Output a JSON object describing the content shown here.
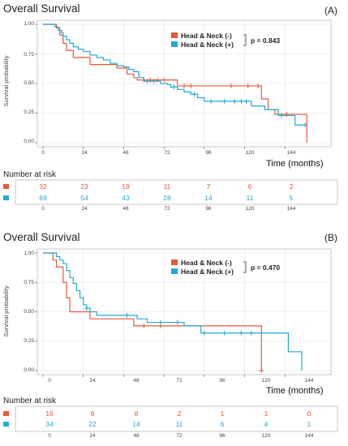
{
  "colors": {
    "neg": "#E8573A",
    "pos": "#22A9D6"
  },
  "charts": [
    {
      "title": "Overall Survival",
      "panel_label": "(A)",
      "legend": [
        "Head & Neck (-)",
        "Head & Neck (+)"
      ],
      "p_value": "p = 0.843",
      "ylabel": "Survival probability",
      "xlabel": "Time (months)",
      "risk_title": "Number at risk",
      "risk_neg": [
        "32",
        "23",
        "19",
        "11",
        "7",
        "6",
        "2"
      ],
      "risk_pos": [
        "69",
        "54",
        "43",
        "28",
        "14",
        "11",
        "5"
      ]
    },
    {
      "title": "Overall Survival",
      "panel_label": "(B)",
      "legend": [
        "Head & Neck (-)",
        "Head & Neck (+)"
      ],
      "p_value": "p = 0.470",
      "ylabel": "Survival probability",
      "xlabel": "Time (months)",
      "risk_title": "Number at risk",
      "risk_neg": [
        "16",
        "9",
        "8",
        "2",
        "1",
        "1",
        "0"
      ],
      "risk_pos": [
        "34",
        "22",
        "14",
        "11",
        "6",
        "4",
        "1"
      ]
    }
  ],
  "chart_data": [
    {
      "type": "line",
      "title": "Overall Survival",
      "xlabel": "Time (months)",
      "ylabel": "Survival probability",
      "xlim": [
        0,
        168
      ],
      "ylim": [
        0,
        1
      ],
      "x_ticks": [
        0,
        24,
        48,
        72,
        96,
        120,
        144
      ],
      "y_ticks": [
        "0.00",
        "0.25",
        "0.50",
        "0.75",
        "1.00"
      ],
      "legend_position": "top-right",
      "series": [
        {
          "name": "Head & Neck (-)",
          "steps": [
            [
              0,
              1.0
            ],
            [
              8,
              0.97
            ],
            [
              10,
              0.91
            ],
            [
              12,
              0.84
            ],
            [
              14,
              0.78
            ],
            [
              18,
              0.72
            ],
            [
              28,
              0.66
            ],
            [
              44,
              0.63
            ],
            [
              50,
              0.58
            ],
            [
              54,
              0.55
            ],
            [
              56,
              0.53
            ],
            [
              80,
              0.48
            ],
            [
              130,
              0.37
            ],
            [
              134,
              0.28
            ],
            [
              138,
              0.24
            ],
            [
              157,
              0.0
            ]
          ],
          "censor_x": [
            60,
            64,
            68,
            72,
            84,
            88,
            112,
            122,
            128,
            145
          ]
        },
        {
          "name": "Head & Neck (+)",
          "steps": [
            [
              0,
              1.0
            ],
            [
              7,
              0.98
            ],
            [
              9,
              0.95
            ],
            [
              11,
              0.93
            ],
            [
              12,
              0.9
            ],
            [
              14,
              0.87
            ],
            [
              16,
              0.84
            ],
            [
              18,
              0.81
            ],
            [
              21,
              0.79
            ],
            [
              24,
              0.77
            ],
            [
              28,
              0.74
            ],
            [
              32,
              0.72
            ],
            [
              36,
              0.7
            ],
            [
              40,
              0.67
            ],
            [
              44,
              0.65
            ],
            [
              48,
              0.64
            ],
            [
              51,
              0.62
            ],
            [
              54,
              0.6
            ],
            [
              57,
              0.55
            ],
            [
              60,
              0.52
            ],
            [
              70,
              0.5
            ],
            [
              74,
              0.49
            ],
            [
              76,
              0.47
            ],
            [
              80,
              0.45
            ],
            [
              84,
              0.43
            ],
            [
              88,
              0.41
            ],
            [
              92,
              0.38
            ],
            [
              96,
              0.35
            ],
            [
              124,
              0.31
            ],
            [
              132,
              0.28
            ],
            [
              140,
              0.23
            ],
            [
              150,
              0.15
            ]
          ],
          "censor_x": [
            62,
            66,
            78,
            90,
            100,
            108,
            114,
            118,
            121,
            142,
            156
          ]
        }
      ],
      "annotations": [
        "p = 0.843",
        "(A)"
      ]
    },
    {
      "type": "line",
      "title": "Overall Survival",
      "xlabel": "Time (months)",
      "ylabel": "Survival probability",
      "xlim": [
        0,
        168
      ],
      "ylim": [
        0,
        1
      ],
      "x_ticks": [
        0,
        24,
        48,
        72,
        96,
        120,
        144
      ],
      "y_ticks": [
        "0.00",
        "0.25",
        "0.50",
        "0.75",
        "1.00"
      ],
      "legend_position": "top-right",
      "series": [
        {
          "name": "Head & Neck (-)",
          "steps": [
            [
              0,
              1.0
            ],
            [
              6,
              0.94
            ],
            [
              8,
              0.88
            ],
            [
              12,
              0.75
            ],
            [
              14,
              0.62
            ],
            [
              16,
              0.5
            ],
            [
              28,
              0.44
            ],
            [
              54,
              0.38
            ],
            [
              130,
              0.0
            ]
          ],
          "censor_x": [
            60,
            70,
            130
          ]
        },
        {
          "name": "Head & Neck (+)",
          "steps": [
            [
              0,
              1.0
            ],
            [
              8,
              0.97
            ],
            [
              10,
              0.94
            ],
            [
              12,
              0.91
            ],
            [
              14,
              0.85
            ],
            [
              16,
              0.79
            ],
            [
              18,
              0.74
            ],
            [
              20,
              0.68
            ],
            [
              22,
              0.62
            ],
            [
              24,
              0.56
            ],
            [
              26,
              0.53
            ],
            [
              28,
              0.5
            ],
            [
              32,
              0.47
            ],
            [
              56,
              0.44
            ],
            [
              62,
              0.41
            ],
            [
              84,
              0.38
            ],
            [
              94,
              0.32
            ],
            [
              146,
              0.16
            ],
            [
              154,
              0.0
            ]
          ],
          "censor_x": [
            26,
            50,
            70,
            80,
            96,
            108,
            118,
            124
          ]
        }
      ],
      "annotations": [
        "p = 0.470",
        "(B)"
      ]
    }
  ]
}
